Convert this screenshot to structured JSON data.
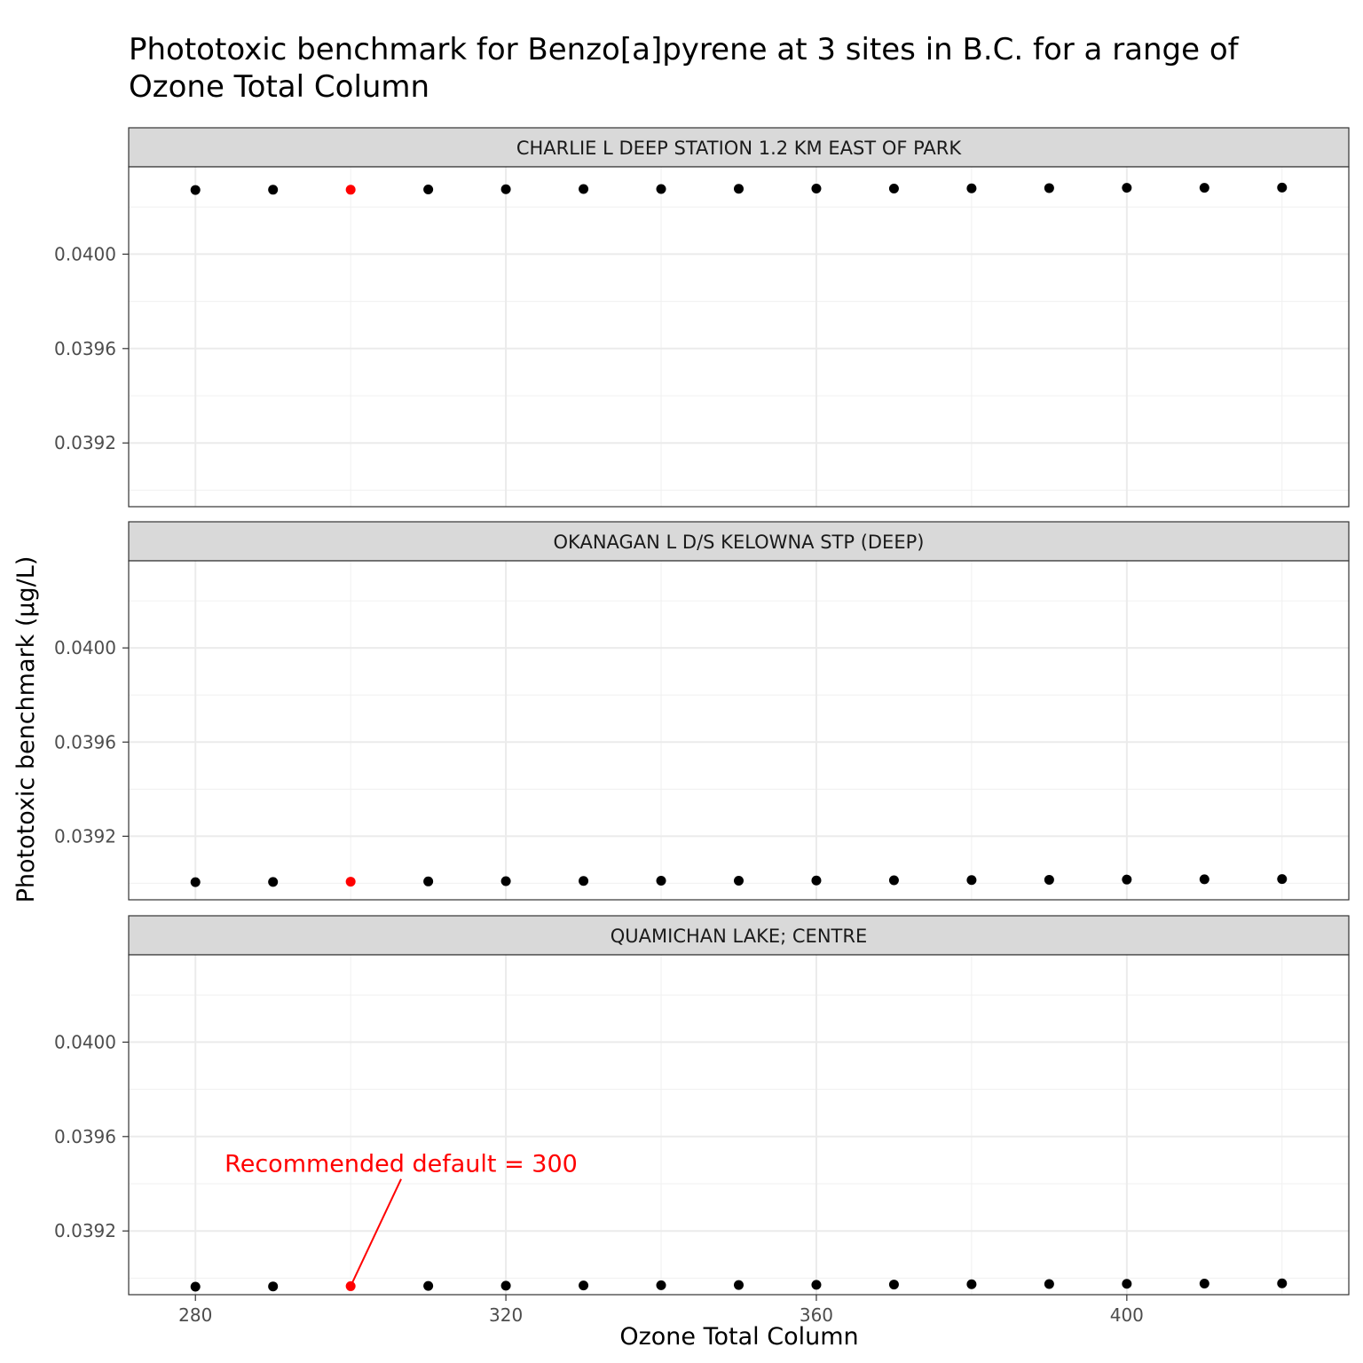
{
  "chart_data": {
    "type": "scatter",
    "title_lines": [
      "Phototoxic benchmark for Benzo[a]pyrene at 3 sites in B.C. for a range of",
      "Ozone Total Column"
    ],
    "xlabel": "Ozone Total Column",
    "ylabel": "Phototoxic benchmark (µg/L)",
    "xlim": [
      271.4,
      428.6
    ],
    "x_ticks": [
      280,
      320,
      360,
      400
    ],
    "ylim": [
      0.03893,
      0.04037
    ],
    "y_ticks": [
      0.0392,
      0.0396,
      0.04
    ],
    "y_tick_labels": [
      "0.0392",
      "0.0396",
      "0.0400"
    ],
    "grid": true,
    "highlight_x": 300,
    "highlight_color": "#ff0000",
    "point_color": "#000000",
    "x": [
      280,
      290,
      300,
      310,
      320,
      330,
      340,
      350,
      360,
      370,
      380,
      390,
      400,
      410,
      420
    ],
    "panels": [
      {
        "site": "CHARLIE L DEEP STATION 1.2 KM EAST OF PARK",
        "values": [
          0.040272,
          0.040273,
          0.040273,
          0.040274,
          0.040275,
          0.040276,
          0.040276,
          0.040277,
          0.040278,
          0.040278,
          0.040279,
          0.04028,
          0.040281,
          0.040281,
          0.040282
        ]
      },
      {
        "site": "OKANAGAN L D/S KELOWNA STP (DEEP)",
        "values": [
          0.039005,
          0.039006,
          0.039007,
          0.039008,
          0.039009,
          0.03901,
          0.039011,
          0.039011,
          0.039012,
          0.039013,
          0.039014,
          0.039015,
          0.039016,
          0.039017,
          0.039018
        ]
      },
      {
        "site": "QUAMICHAN LAKE; CENTRE",
        "values": [
          0.038964,
          0.038965,
          0.038966,
          0.038967,
          0.038968,
          0.038969,
          0.03897,
          0.038971,
          0.038972,
          0.038973,
          0.038974,
          0.038975,
          0.038976,
          0.038977,
          0.038978
        ]
      }
    ],
    "annotation": {
      "text": "Recommended default = 300",
      "panel": 2,
      "x": 300,
      "label_x": 306.5,
      "label_y": 0.03945,
      "color": "#ff0000"
    }
  }
}
